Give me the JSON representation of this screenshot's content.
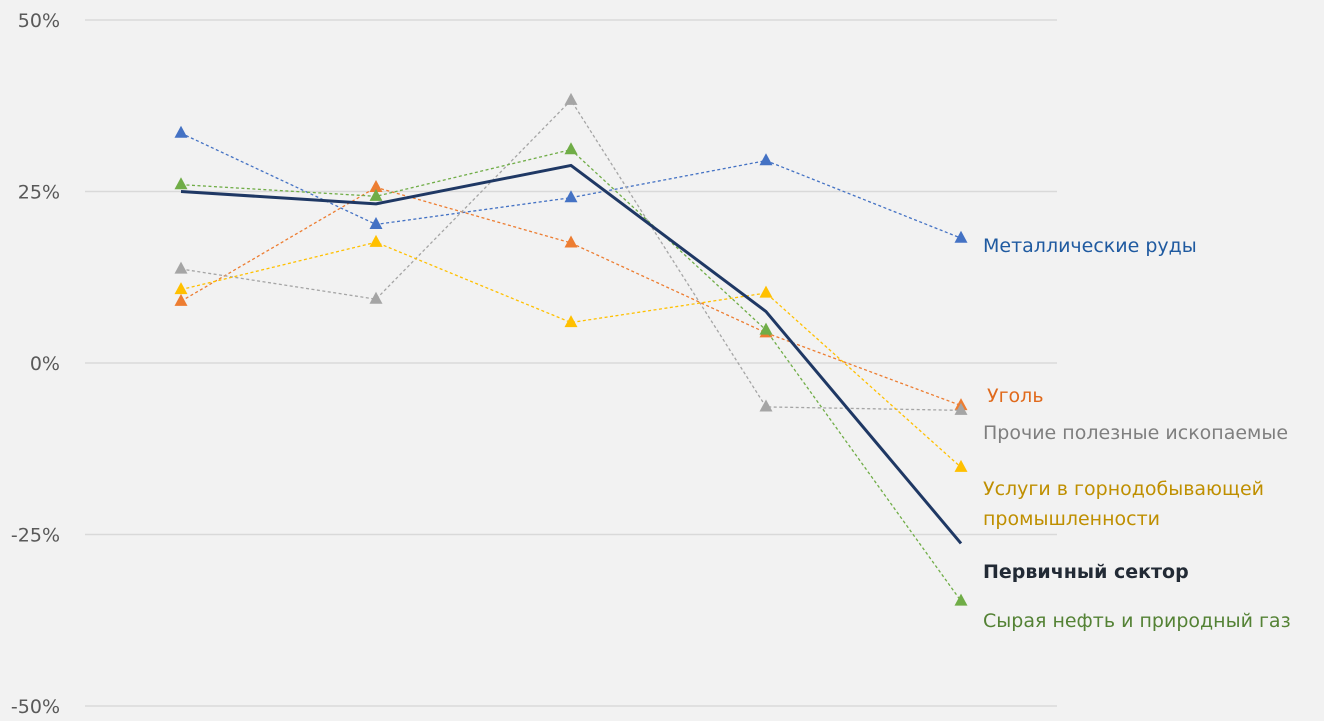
{
  "chart_data": {
    "type": "line",
    "title": "",
    "xlabel": "",
    "ylabel": "",
    "x": [
      1,
      2,
      3,
      4,
      5
    ],
    "ylim": [
      -50,
      50
    ],
    "y_ticks": [
      {
        "value": 50,
        "label": "50%"
      },
      {
        "value": 25,
        "label": "25%"
      },
      {
        "value": 0,
        "label": "0%"
      },
      {
        "value": -25,
        "label": "-25%"
      },
      {
        "value": -50,
        "label": "-50%"
      }
    ],
    "grid": true,
    "series": [
      {
        "name": "Металлические руды",
        "color": "#4472c4",
        "label_color": "#1f5aa0",
        "style": "dashed",
        "marker": "triangle",
        "values": [
          33.5,
          20.2,
          24.1,
          29.5,
          18.2
        ]
      },
      {
        "name": "Уголь",
        "color": "#ed7d31",
        "label_color": "#e06a1c",
        "style": "dashed",
        "marker": "triangle",
        "values": [
          9.0,
          25.6,
          17.5,
          4.4,
          -6.2
        ]
      },
      {
        "name": "Прочие полезные ископаемые",
        "color": "#a5a5a5",
        "label_color": "#7f7f7f",
        "style": "dashed",
        "marker": "triangle",
        "values": [
          13.7,
          9.3,
          38.3,
          -6.4,
          -6.9
        ]
      },
      {
        "name": "Услуги в горнодобывающей промышленности",
        "name_lines": [
          "Услуги в горнодобывающей",
          "промышленности"
        ],
        "color": "#ffc000",
        "label_color": "#bf8f00",
        "style": "dashed",
        "marker": "triangle",
        "values": [
          10.7,
          17.6,
          5.9,
          10.2,
          -15.2
        ]
      },
      {
        "name": "Сырая нефть и природный газ",
        "color": "#70ad47",
        "label_color": "#548235",
        "style": "dashed",
        "marker": "triangle",
        "values": [
          26.0,
          24.3,
          31.1,
          4.8,
          -34.7
        ]
      },
      {
        "name": "Первичный сектор",
        "color": "#1f3864",
        "label_color": "#222a35",
        "style": "solid",
        "marker": "none",
        "bold": true,
        "values": [
          25.0,
          23.2,
          28.8,
          7.5,
          -26.3
        ]
      }
    ]
  }
}
